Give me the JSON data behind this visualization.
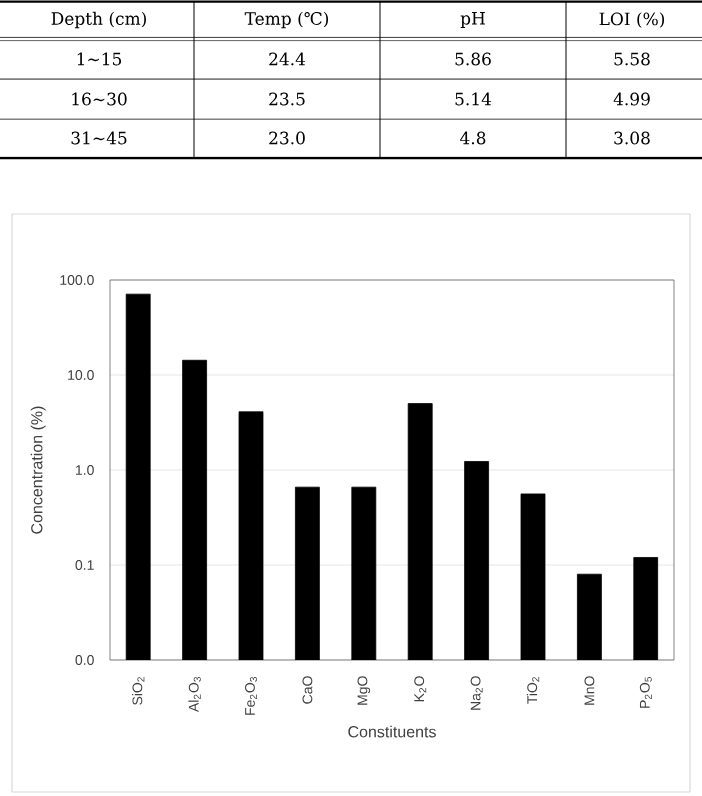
{
  "chart_data": [
    {
      "type": "other",
      "categories": [
        "Depth (cm)",
        "Temp (℃)",
        "pH",
        "LOI (%)"
      ],
      "annotations": [
        "1∼15",
        "24.4",
        "5.86",
        "5.58",
        "16∼30",
        "23.5",
        "5.14",
        "4.99",
        "31∼45",
        "23.0",
        "4.8",
        "3.08"
      ]
    },
    {
      "type": "bar",
      "xlabel": "Constituents",
      "ylabel": "Concentration (%)",
      "categories": [
        "SiO$_{2}$",
        "Al$_{2}$O$_{3}$",
        "Fe$_{2}$O$_{3}$",
        "CaO",
        "MgO",
        "K$_{2}$O",
        "Na$_{2}$O",
        "TiO$_{2}$",
        "MnO",
        "P$_{2}$O$_{5}$"
      ],
      "values": [
        71,
        14.3,
        4.1,
        0.66,
        0.66,
        5.0,
        1.23,
        0.56,
        0.08,
        0.12
      ],
      "color": "#000000",
      "log": true,
      "grid": "y",
      "ylim": [
        0.01,
        100
      ],
      "yticks": [
        {
          "value": 0.01,
          "label": "0.0"
        },
        {
          "value": 0.1,
          "label": "0.1"
        },
        {
          "value": 1,
          "label": "1.0"
        },
        {
          "value": 10,
          "label": "10.0"
        },
        {
          "value": 100,
          "label": "100.0"
        }
      ]
    }
  ]
}
